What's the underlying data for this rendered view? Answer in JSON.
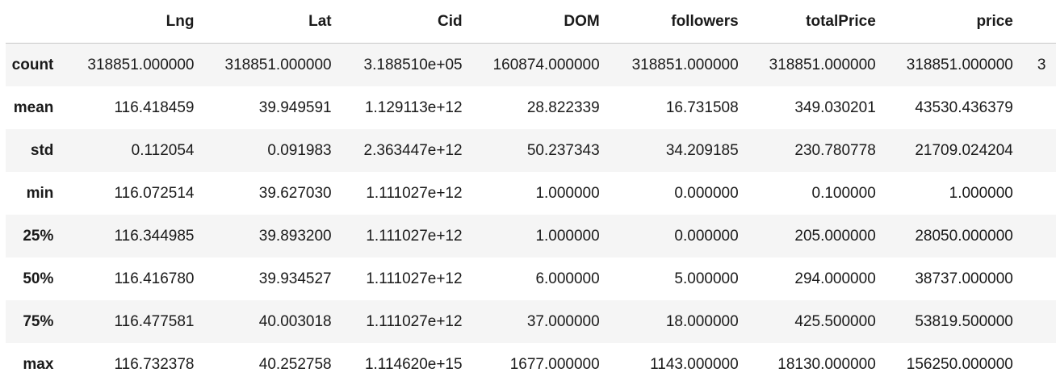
{
  "columns": [
    "Lng",
    "Lat",
    "Cid",
    "DOM",
    "followers",
    "totalPrice",
    "price"
  ],
  "rows": [
    {
      "label": "count",
      "values": [
        "318851.000000",
        "318851.000000",
        "3.188510e+05",
        "160874.000000",
        "318851.000000",
        "318851.000000",
        "318851.000000"
      ],
      "cutoff": "3"
    },
    {
      "label": "mean",
      "values": [
        "116.418459",
        "39.949591",
        "1.129113e+12",
        "28.822339",
        "16.731508",
        "349.030201",
        "43530.436379"
      ]
    },
    {
      "label": "std",
      "values": [
        "0.112054",
        "0.091983",
        "2.363447e+12",
        "50.237343",
        "34.209185",
        "230.780778",
        "21709.024204"
      ]
    },
    {
      "label": "min",
      "values": [
        "116.072514",
        "39.627030",
        "1.111027e+12",
        "1.000000",
        "0.000000",
        "0.100000",
        "1.000000"
      ]
    },
    {
      "label": "25%",
      "values": [
        "116.344985",
        "39.893200",
        "1.111027e+12",
        "1.000000",
        "0.000000",
        "205.000000",
        "28050.000000"
      ]
    },
    {
      "label": "50%",
      "values": [
        "116.416780",
        "39.934527",
        "1.111027e+12",
        "6.000000",
        "5.000000",
        "294.000000",
        "38737.000000"
      ]
    },
    {
      "label": "75%",
      "values": [
        "116.477581",
        "40.003018",
        "1.111027e+12",
        "37.000000",
        "18.000000",
        "425.500000",
        "53819.500000"
      ]
    },
    {
      "label": "max",
      "values": [
        "116.732378",
        "40.252758",
        "1.114620e+15",
        "1677.000000",
        "1143.000000",
        "18130.000000",
        "156250.000000"
      ]
    }
  ]
}
